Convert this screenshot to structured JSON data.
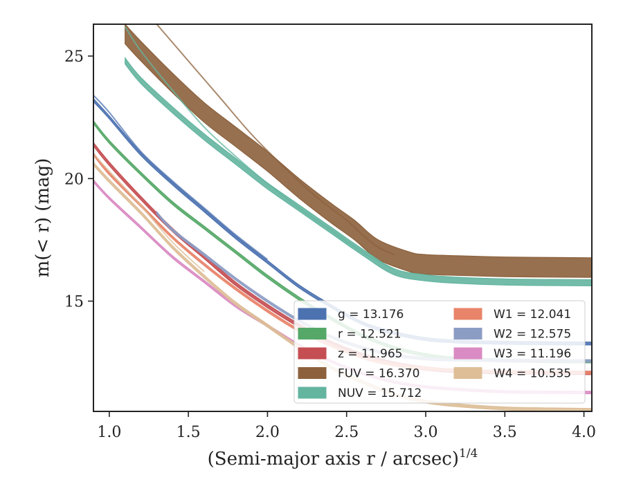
{
  "chart_data": {
    "type": "line",
    "xlabel": "(Semi-major axis r / arcsec)",
    "xlabel_exponent": "1/4",
    "ylabel": "m(< r) (mag)",
    "xlim": [
      0.9,
      4.05
    ],
    "ylim": [
      26.3,
      10.5
    ],
    "y_inverted": true,
    "grid": false,
    "legend_placement": "lower-right",
    "xticks": [
      1.0,
      1.5,
      2.0,
      2.5,
      3.0,
      3.5,
      4.0
    ],
    "xtick_labels": [
      "1.0",
      "1.5",
      "2.0",
      "2.5",
      "3.0",
      "3.5",
      "4.0"
    ],
    "yticks": [
      15,
      20,
      25
    ],
    "ytick_labels": [
      "15",
      "20",
      "25"
    ],
    "series": [
      {
        "name": "g = 13.176",
        "color": "#4C72B0",
        "band_width": 0.12,
        "x": [
          0.9,
          1.0,
          1.2,
          1.4,
          1.6,
          1.8,
          2.0,
          2.2,
          2.4,
          2.6,
          2.8,
          3.0,
          3.2,
          3.5,
          3.8,
          4.05
        ],
        "y": [
          23.2,
          22.5,
          21.0,
          19.8,
          18.7,
          17.6,
          16.6,
          15.6,
          14.8,
          14.1,
          13.7,
          13.45,
          13.35,
          13.3,
          13.28,
          13.27
        ],
        "outlier": {
          "x": [
            0.9,
            1.0,
            1.2,
            1.4,
            1.6,
            1.8,
            2.0
          ],
          "y": [
            23.4,
            22.7,
            21.1,
            19.9,
            18.8,
            17.7,
            16.7
          ]
        }
      },
      {
        "name": "r = 12.521",
        "color": "#55A868",
        "band_width": 0.12,
        "x": [
          0.9,
          1.0,
          1.2,
          1.4,
          1.6,
          1.8,
          2.0,
          2.2,
          2.4,
          2.6,
          2.8,
          3.0,
          3.2,
          3.5,
          3.8,
          4.05
        ],
        "y": [
          22.3,
          21.5,
          20.2,
          19.0,
          18.0,
          17.0,
          16.0,
          15.1,
          14.3,
          13.6,
          13.1,
          12.8,
          12.65,
          12.58,
          12.55,
          12.54
        ]
      },
      {
        "name": "z = 11.965",
        "color": "#C44E52",
        "band_width": 0.14,
        "x": [
          0.9,
          1.0,
          1.2,
          1.4,
          1.6,
          1.8,
          2.0,
          2.2,
          2.4,
          2.6,
          2.8,
          3.0,
          3.2,
          3.5,
          3.8,
          4.05
        ],
        "y": [
          21.4,
          20.6,
          19.2,
          17.9,
          16.8,
          15.7,
          14.8,
          14.0,
          13.3,
          12.8,
          12.45,
          12.25,
          12.15,
          12.1,
          12.08,
          12.07
        ]
      },
      {
        "name": "FUV = 16.370",
        "color": "#8C613C",
        "band_width": 0.8,
        "x": [
          1.1,
          1.2,
          1.4,
          1.6,
          1.8,
          2.0,
          2.2,
          2.4,
          2.55,
          2.7,
          2.9,
          3.0,
          3.2,
          3.5,
          3.8,
          4.05
        ],
        "y": [
          25.9,
          25.2,
          23.9,
          22.7,
          21.7,
          20.7,
          19.6,
          18.6,
          17.9,
          17.1,
          16.6,
          16.5,
          16.45,
          16.4,
          16.38,
          16.37
        ],
        "outlier": {
          "x": [
            1.3,
            1.5,
            1.7,
            1.9,
            2.1,
            2.3,
            2.5,
            2.6,
            2.7,
            2.8
          ],
          "y": [
            26.3,
            24.8,
            23.3,
            21.8,
            20.5,
            19.3,
            18.3,
            17.7,
            17.2,
            16.9
          ]
        }
      },
      {
        "name": "NUV = 15.712",
        "color": "#64B5A0",
        "band_width": 0.25,
        "x": [
          1.1,
          1.2,
          1.4,
          1.6,
          1.8,
          2.0,
          2.2,
          2.4,
          2.6,
          2.8,
          3.0,
          3.2,
          3.5,
          3.8,
          4.05
        ],
        "y": [
          24.8,
          24.0,
          22.8,
          21.7,
          20.7,
          19.7,
          18.8,
          17.9,
          17.0,
          16.2,
          15.95,
          15.85,
          15.78,
          15.76,
          15.75
        ],
        "outlier": {
          "x": [
            1.1,
            1.2,
            1.4,
            1.6,
            1.8,
            2.0,
            2.2,
            2.4,
            2.6,
            2.8
          ],
          "y": [
            26.2,
            25.2,
            23.6,
            22.1,
            20.9,
            19.8,
            18.8,
            17.9,
            17.0,
            16.3
          ]
        }
      },
      {
        "name": "W1 = 12.041",
        "color": "#E8846A",
        "band_width": 0.1,
        "x": [
          0.9,
          1.0,
          1.2,
          1.4,
          1.6,
          1.8,
          2.0,
          2.2,
          2.4,
          2.6,
          2.8,
          3.0,
          3.2,
          3.5,
          3.8,
          4.05
        ],
        "y": [
          21.0,
          20.2,
          18.9,
          17.6,
          16.5,
          15.5,
          14.6,
          13.8,
          13.2,
          12.7,
          12.4,
          12.25,
          12.18,
          12.12,
          12.1,
          12.08
        ]
      },
      {
        "name": "W2 = 12.575",
        "color": "#8C9DC4",
        "band_width": 0.1,
        "x": [
          1.3,
          1.4,
          1.6,
          1.8,
          2.0,
          2.2,
          2.4,
          2.6,
          2.8,
          3.0,
          3.2,
          3.5,
          3.8,
          4.05
        ],
        "y": [
          18.6,
          17.9,
          16.9,
          15.9,
          15.0,
          14.2,
          13.55,
          13.1,
          12.8,
          12.65,
          12.6,
          12.58,
          12.57,
          12.56
        ]
      },
      {
        "name": "W3 = 11.196",
        "color": "#DA8BC3",
        "band_width": 0.1,
        "x": [
          0.9,
          1.0,
          1.2,
          1.4,
          1.6,
          1.8,
          2.0,
          2.2,
          2.4,
          2.6,
          2.8,
          3.0,
          3.2,
          3.5,
          3.8,
          4.05
        ],
        "y": [
          19.9,
          19.2,
          18.0,
          16.8,
          15.8,
          14.8,
          14.0,
          13.2,
          12.55,
          12.05,
          11.7,
          11.5,
          11.4,
          11.3,
          11.28,
          11.27
        ]
      },
      {
        "name": "W4 = 10.535",
        "color": "#DDBE97",
        "band_width": 0.12,
        "x": [
          0.9,
          1.0,
          1.2,
          1.4,
          1.6,
          1.8,
          2.0,
          2.2,
          2.4,
          2.6,
          2.8,
          3.0,
          3.2,
          3.5,
          3.8,
          4.05
        ],
        "y": [
          20.6,
          19.9,
          18.6,
          17.2,
          16.0,
          14.9,
          14.0,
          13.1,
          12.3,
          11.7,
          11.2,
          10.9,
          10.75,
          10.62,
          10.58,
          10.56
        ],
        "outlier": {
          "x": [
            0.9,
            1.0,
            1.2,
            1.4,
            1.6
          ],
          "y": [
            21.0,
            20.3,
            18.9,
            17.4,
            16.2
          ]
        }
      }
    ],
    "legend_order": [
      0,
      5,
      1,
      6,
      2,
      7,
      3,
      8,
      4
    ]
  }
}
